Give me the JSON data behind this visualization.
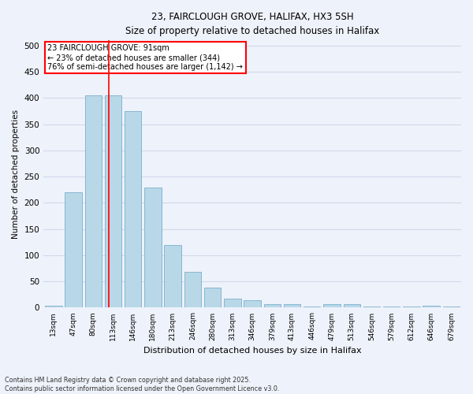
{
  "title_line1": "23, FAIRCLOUGH GROVE, HALIFAX, HX3 5SH",
  "title_line2": "Size of property relative to detached houses in Halifax",
  "xlabel": "Distribution of detached houses by size in Halifax",
  "ylabel": "Number of detached properties",
  "categories": [
    "13sqm",
    "47sqm",
    "80sqm",
    "113sqm",
    "146sqm",
    "180sqm",
    "213sqm",
    "246sqm",
    "280sqm",
    "313sqm",
    "346sqm",
    "379sqm",
    "413sqm",
    "446sqm",
    "479sqm",
    "513sqm",
    "546sqm",
    "579sqm",
    "612sqm",
    "646sqm",
    "679sqm"
  ],
  "values": [
    3,
    220,
    405,
    405,
    375,
    230,
    120,
    68,
    38,
    17,
    14,
    7,
    7,
    2,
    7,
    7,
    2,
    2,
    2,
    3,
    2
  ],
  "bar_color": "#b8d8e8",
  "bar_edge_color": "#7aafcc",
  "vline_x": 2.77,
  "vline_color": "red",
  "annotation_text": "23 FAIRCLOUGH GROVE: 91sqm\n← 23% of detached houses are smaller (344)\n76% of semi-detached houses are larger (1,142) →",
  "annotation_box_color": "white",
  "annotation_box_edge_color": "red",
  "background_color": "#eef2fa",
  "grid_color": "#d0d8e8",
  "ylim": [
    0,
    510
  ],
  "yticks": [
    0,
    50,
    100,
    150,
    200,
    250,
    300,
    350,
    400,
    450,
    500
  ],
  "footer_line1": "Contains HM Land Registry data © Crown copyright and database right 2025.",
  "footer_line2": "Contains public sector information licensed under the Open Government Licence v3.0."
}
